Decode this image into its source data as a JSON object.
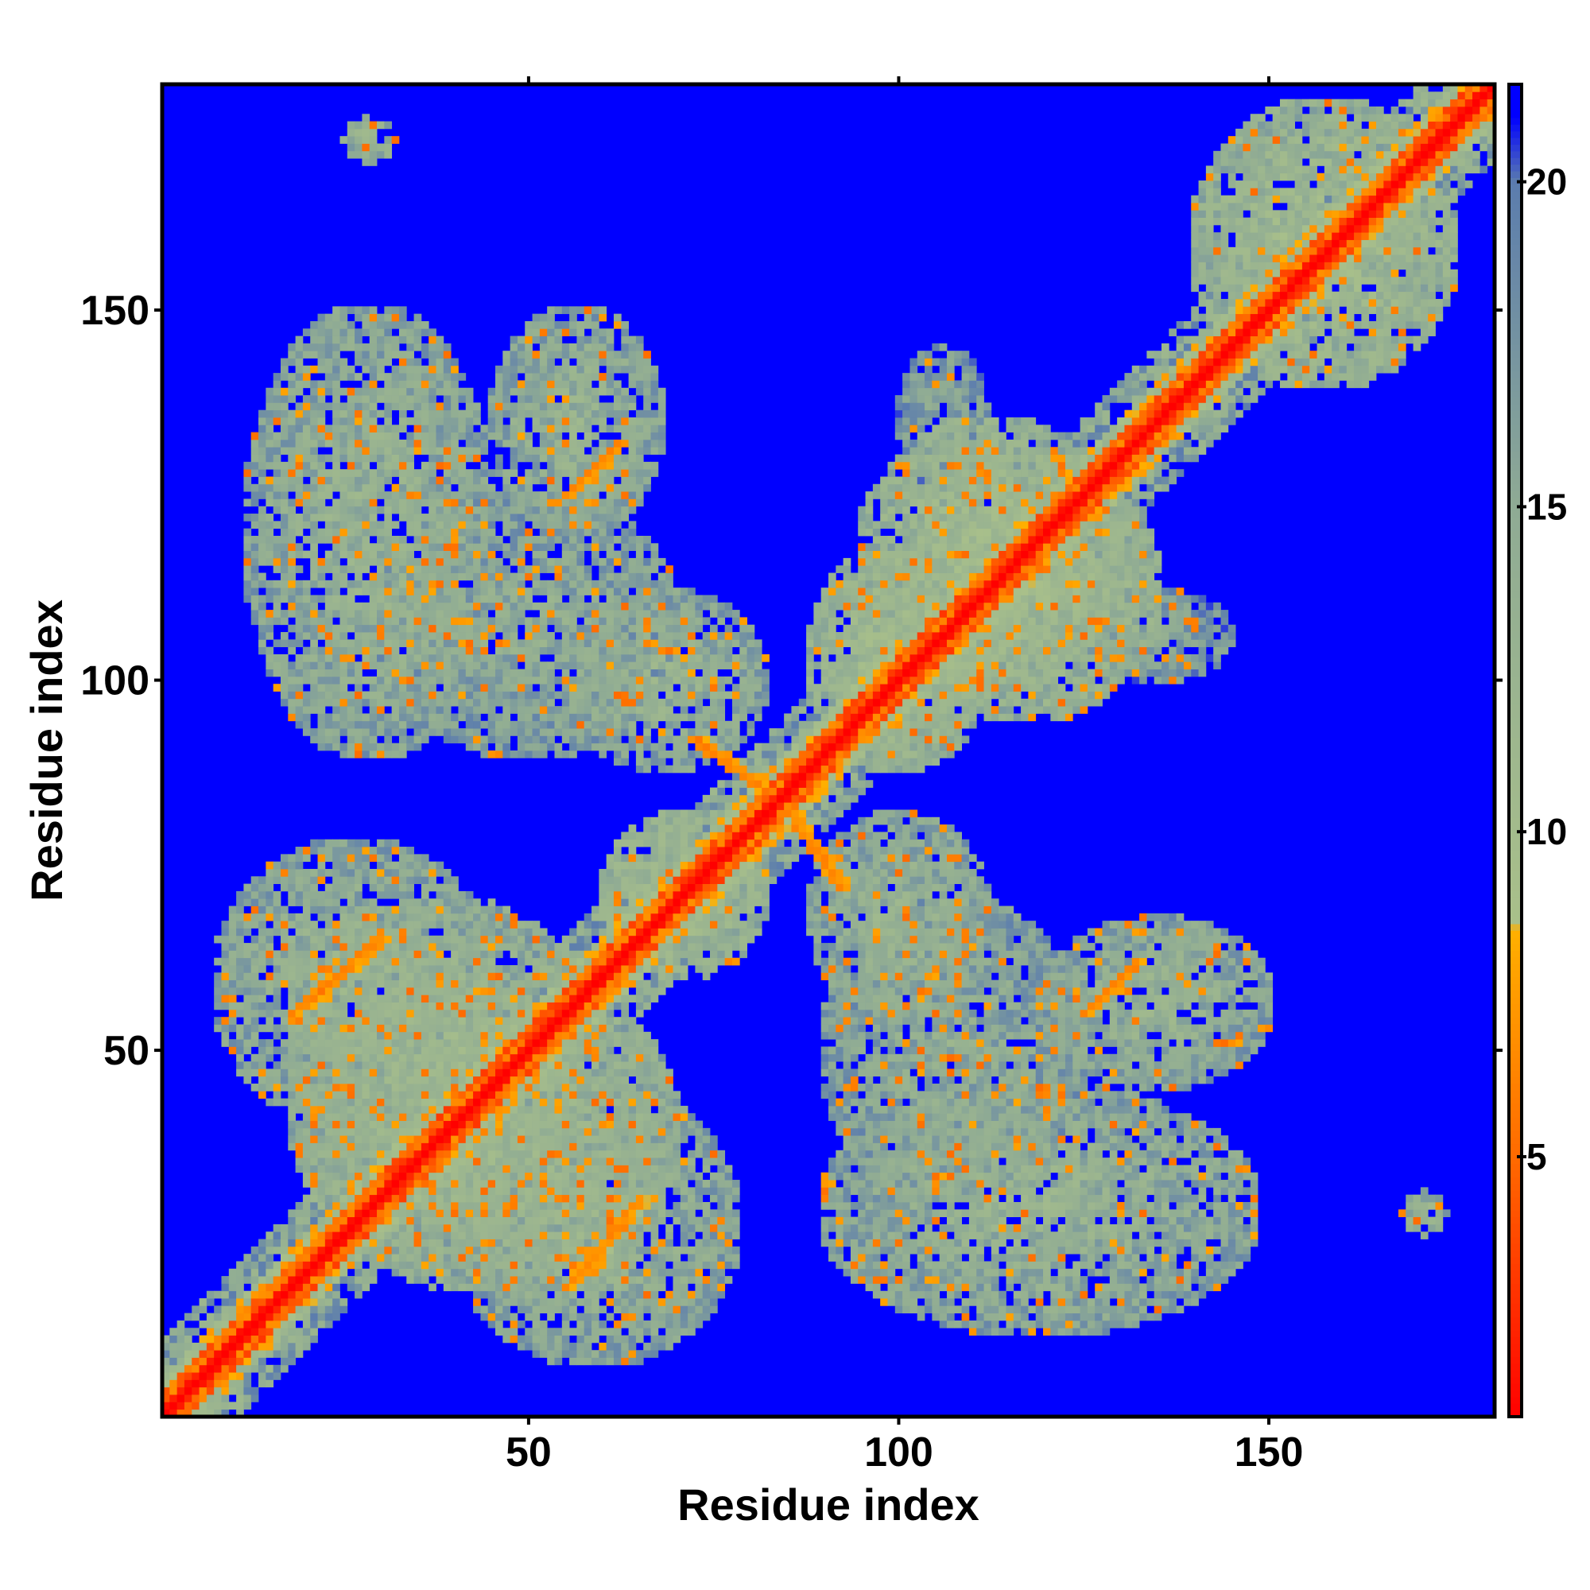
{
  "chart_data": {
    "type": "heatmap",
    "title": "",
    "xlabel": "Residue index",
    "ylabel": "Residue index",
    "xlim": [
      1,
      180
    ],
    "ylim": [
      1,
      180
    ],
    "x_ticks": [
      50,
      100,
      150
    ],
    "y_ticks": [
      50,
      100,
      150
    ],
    "colorbar": {
      "min": 1,
      "max": 21.5,
      "ticks": [
        5,
        10,
        15,
        20
      ],
      "colors": [
        {
          "value": 1,
          "color": "#ff0000"
        },
        {
          "value": 5,
          "color": "#ff6a00"
        },
        {
          "value": 8.5,
          "color": "#ffb000"
        },
        {
          "value": 8.6,
          "color": "#a9c08a"
        },
        {
          "value": 15,
          "color": "#8fab94"
        },
        {
          "value": 20,
          "color": "#5b7cae"
        },
        {
          "value": 21,
          "color": "#0000ff"
        },
        {
          "value": 21.5,
          "color": "#0000ff"
        }
      ]
    },
    "background_value": 21.5,
    "diagonal": {
      "value_on_diagonal": 1,
      "band_width_residues": 10
    },
    "contact_regions": [
      {
        "x": [
          18,
          60
        ],
        "y": [
          20,
          70
        ],
        "value": 12
      },
      {
        "x": [
          20,
          70
        ],
        "y": [
          18,
          60
        ],
        "value": 12
      },
      {
        "x": [
          40,
          78
        ],
        "y": [
          8,
          45
        ],
        "value": 13
      },
      {
        "x": [
          8,
          45
        ],
        "y": [
          40,
          78
        ],
        "value": 13
      },
      {
        "x": [
          60,
          82
        ],
        "y": [
          60,
          82
        ],
        "value": 11
      },
      {
        "x": [
          55,
          82
        ],
        "y": [
          88,
          112
        ],
        "value": 13
      },
      {
        "x": [
          88,
          112
        ],
        "y": [
          55,
          82
        ],
        "value": 13
      },
      {
        "x": [
          88,
          112
        ],
        "y": [
          88,
          118
        ],
        "value": 11
      },
      {
        "x": [
          100,
          135
        ],
        "y": [
          95,
          130
        ],
        "value": 11
      },
      {
        "x": [
          95,
          130
        ],
        "y": [
          100,
          135
        ],
        "value": 11
      },
      {
        "x": [
          12,
          45
        ],
        "y": [
          90,
          150
        ],
        "value": 13
      },
      {
        "x": [
          45,
          68
        ],
        "y": [
          120,
          150
        ],
        "value": 13
      },
      {
        "x": [
          90,
          148
        ],
        "y": [
          12,
          45
        ],
        "value": 13
      },
      {
        "x": [
          120,
          150
        ],
        "y": [
          45,
          68
        ],
        "value": 13
      },
      {
        "x": [
          90,
          125
        ],
        "y": [
          30,
          70
        ],
        "value": 14
      },
      {
        "x": [
          30,
          70
        ],
        "y": [
          90,
          125
        ],
        "value": 14
      },
      {
        "x": [
          140,
          175
        ],
        "y": [
          140,
          178
        ],
        "value": 11
      },
      {
        "x": [
          25,
          32
        ],
        "y": [
          170,
          176
        ],
        "value": 12
      },
      {
        "x": [
          168,
          174
        ],
        "y": [
          25,
          31
        ],
        "value": 12
      },
      {
        "x": [
          125,
          145
        ],
        "y": [
          100,
          112
        ],
        "value": 15
      },
      {
        "x": [
          100,
          112
        ],
        "y": [
          125,
          145
        ],
        "value": 15
      }
    ],
    "hot_streaks": [
      {
        "from": [
          72,
          92
        ],
        "to": [
          82,
          85
        ],
        "value": 6
      },
      {
        "from": [
          85,
          82
        ],
        "to": [
          92,
          72
        ],
        "value": 6
      },
      {
        "from": [
          18,
          55
        ],
        "to": [
          30,
          65
        ],
        "value": 6
      },
      {
        "from": [
          55,
          18
        ],
        "to": [
          65,
          30
        ],
        "value": 6
      },
      {
        "from": [
          55,
          125
        ],
        "to": [
          62,
          132
        ],
        "value": 6
      },
      {
        "from": [
          125,
          55
        ],
        "to": [
          132,
          62
        ],
        "value": 6
      }
    ]
  }
}
